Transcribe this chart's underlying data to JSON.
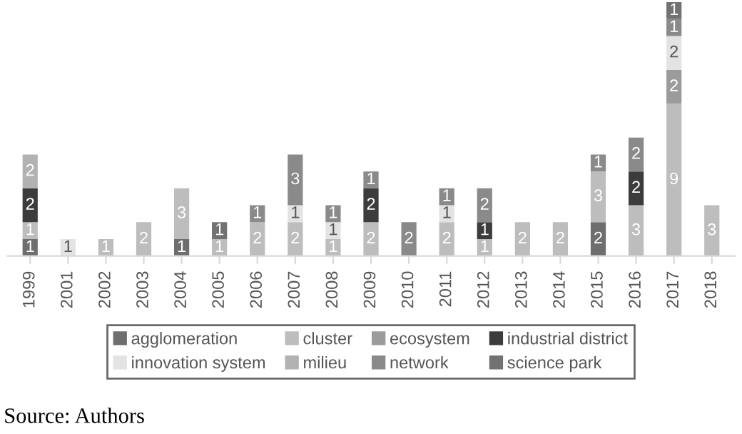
{
  "chart_data": {
    "type": "bar",
    "stacked": true,
    "data_labels": true,
    "legend": "bottom",
    "grid": false,
    "categories": [
      "1999",
      "2001",
      "2002",
      "2003",
      "2004",
      "2005",
      "2006",
      "2007",
      "2008",
      "2009",
      "2010",
      "2011",
      "2012",
      "2013",
      "2014",
      "2015",
      "2016",
      "2017",
      "2018"
    ],
    "series": [
      {
        "name": "agglomeration",
        "color": "#6e6e6e",
        "values": [
          1,
          null,
          null,
          null,
          1,
          null,
          null,
          null,
          null,
          null,
          null,
          null,
          null,
          null,
          null,
          2,
          null,
          null,
          null
        ]
      },
      {
        "name": "cluster",
        "color": "#bdbdbd",
        "values": [
          1,
          null,
          1,
          2,
          3,
          1,
          2,
          2,
          1,
          2,
          null,
          2,
          1,
          2,
          2,
          3,
          3,
          9,
          3
        ]
      },
      {
        "name": "ecosystem",
        "color": "#9b9b9b",
        "values": [
          null,
          null,
          null,
          null,
          null,
          null,
          null,
          null,
          null,
          null,
          null,
          null,
          null,
          null,
          null,
          null,
          null,
          2,
          null
        ]
      },
      {
        "name": "industrial district",
        "color": "#3c3c3c",
        "values": [
          2,
          null,
          null,
          null,
          null,
          null,
          null,
          null,
          null,
          2,
          null,
          null,
          1,
          null,
          null,
          null,
          2,
          null,
          null
        ]
      },
      {
        "name": "innovation system",
        "color": "#e3e3e3",
        "values": [
          null,
          1,
          null,
          null,
          null,
          null,
          null,
          1,
          1,
          null,
          null,
          1,
          null,
          null,
          null,
          null,
          null,
          2,
          null
        ]
      },
      {
        "name": "milieu",
        "color": "#b2b2b2",
        "values": [
          2,
          null,
          null,
          null,
          null,
          null,
          null,
          null,
          null,
          null,
          null,
          null,
          null,
          null,
          null,
          null,
          null,
          null,
          null
        ]
      },
      {
        "name": "network",
        "color": "#8a8a8a",
        "values": [
          null,
          null,
          null,
          null,
          null,
          null,
          1,
          3,
          1,
          1,
          2,
          1,
          2,
          null,
          null,
          1,
          2,
          1,
          null
        ]
      },
      {
        "name": "science park",
        "color": "#727272",
        "values": [
          null,
          null,
          null,
          null,
          null,
          1,
          null,
          null,
          null,
          null,
          null,
          null,
          null,
          null,
          null,
          null,
          null,
          1,
          null
        ]
      }
    ],
    "annotations": [
      "Source: Authors"
    ]
  }
}
